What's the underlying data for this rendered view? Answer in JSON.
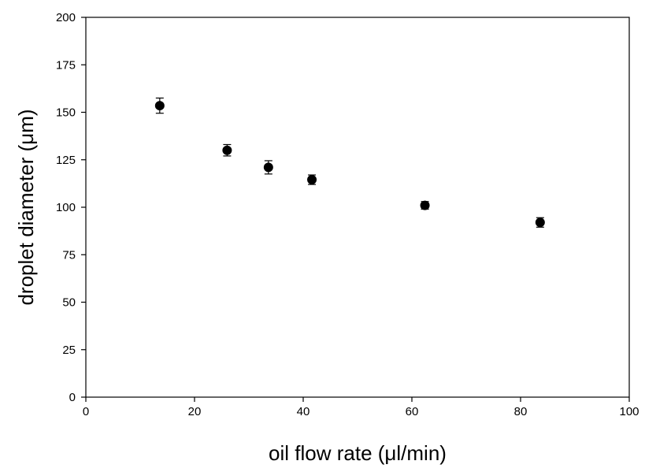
{
  "chart_data": {
    "type": "scatter",
    "xlabel": "oil flow rate (μl/min)",
    "ylabel": "droplet diameter (μm)",
    "xlim": [
      0,
      100
    ],
    "ylim": [
      0,
      200
    ],
    "xticks": [
      0,
      20,
      40,
      60,
      80,
      100
    ],
    "yticks": [
      0,
      25,
      50,
      75,
      100,
      125,
      150,
      175,
      200
    ],
    "grid": false,
    "marker_color": "#000000",
    "series": [
      {
        "points": [
          {
            "x": 13.6,
            "y": 153.5,
            "err": 4.0
          },
          {
            "x": 26.0,
            "y": 130.0,
            "err": 3.0
          },
          {
            "x": 33.6,
            "y": 121.0,
            "err": 3.5
          },
          {
            "x": 41.6,
            "y": 114.5,
            "err": 2.5
          },
          {
            "x": 62.4,
            "y": 101.0,
            "err": 2.0
          },
          {
            "x": 83.6,
            "y": 92.0,
            "err": 2.5
          }
        ]
      }
    ]
  }
}
